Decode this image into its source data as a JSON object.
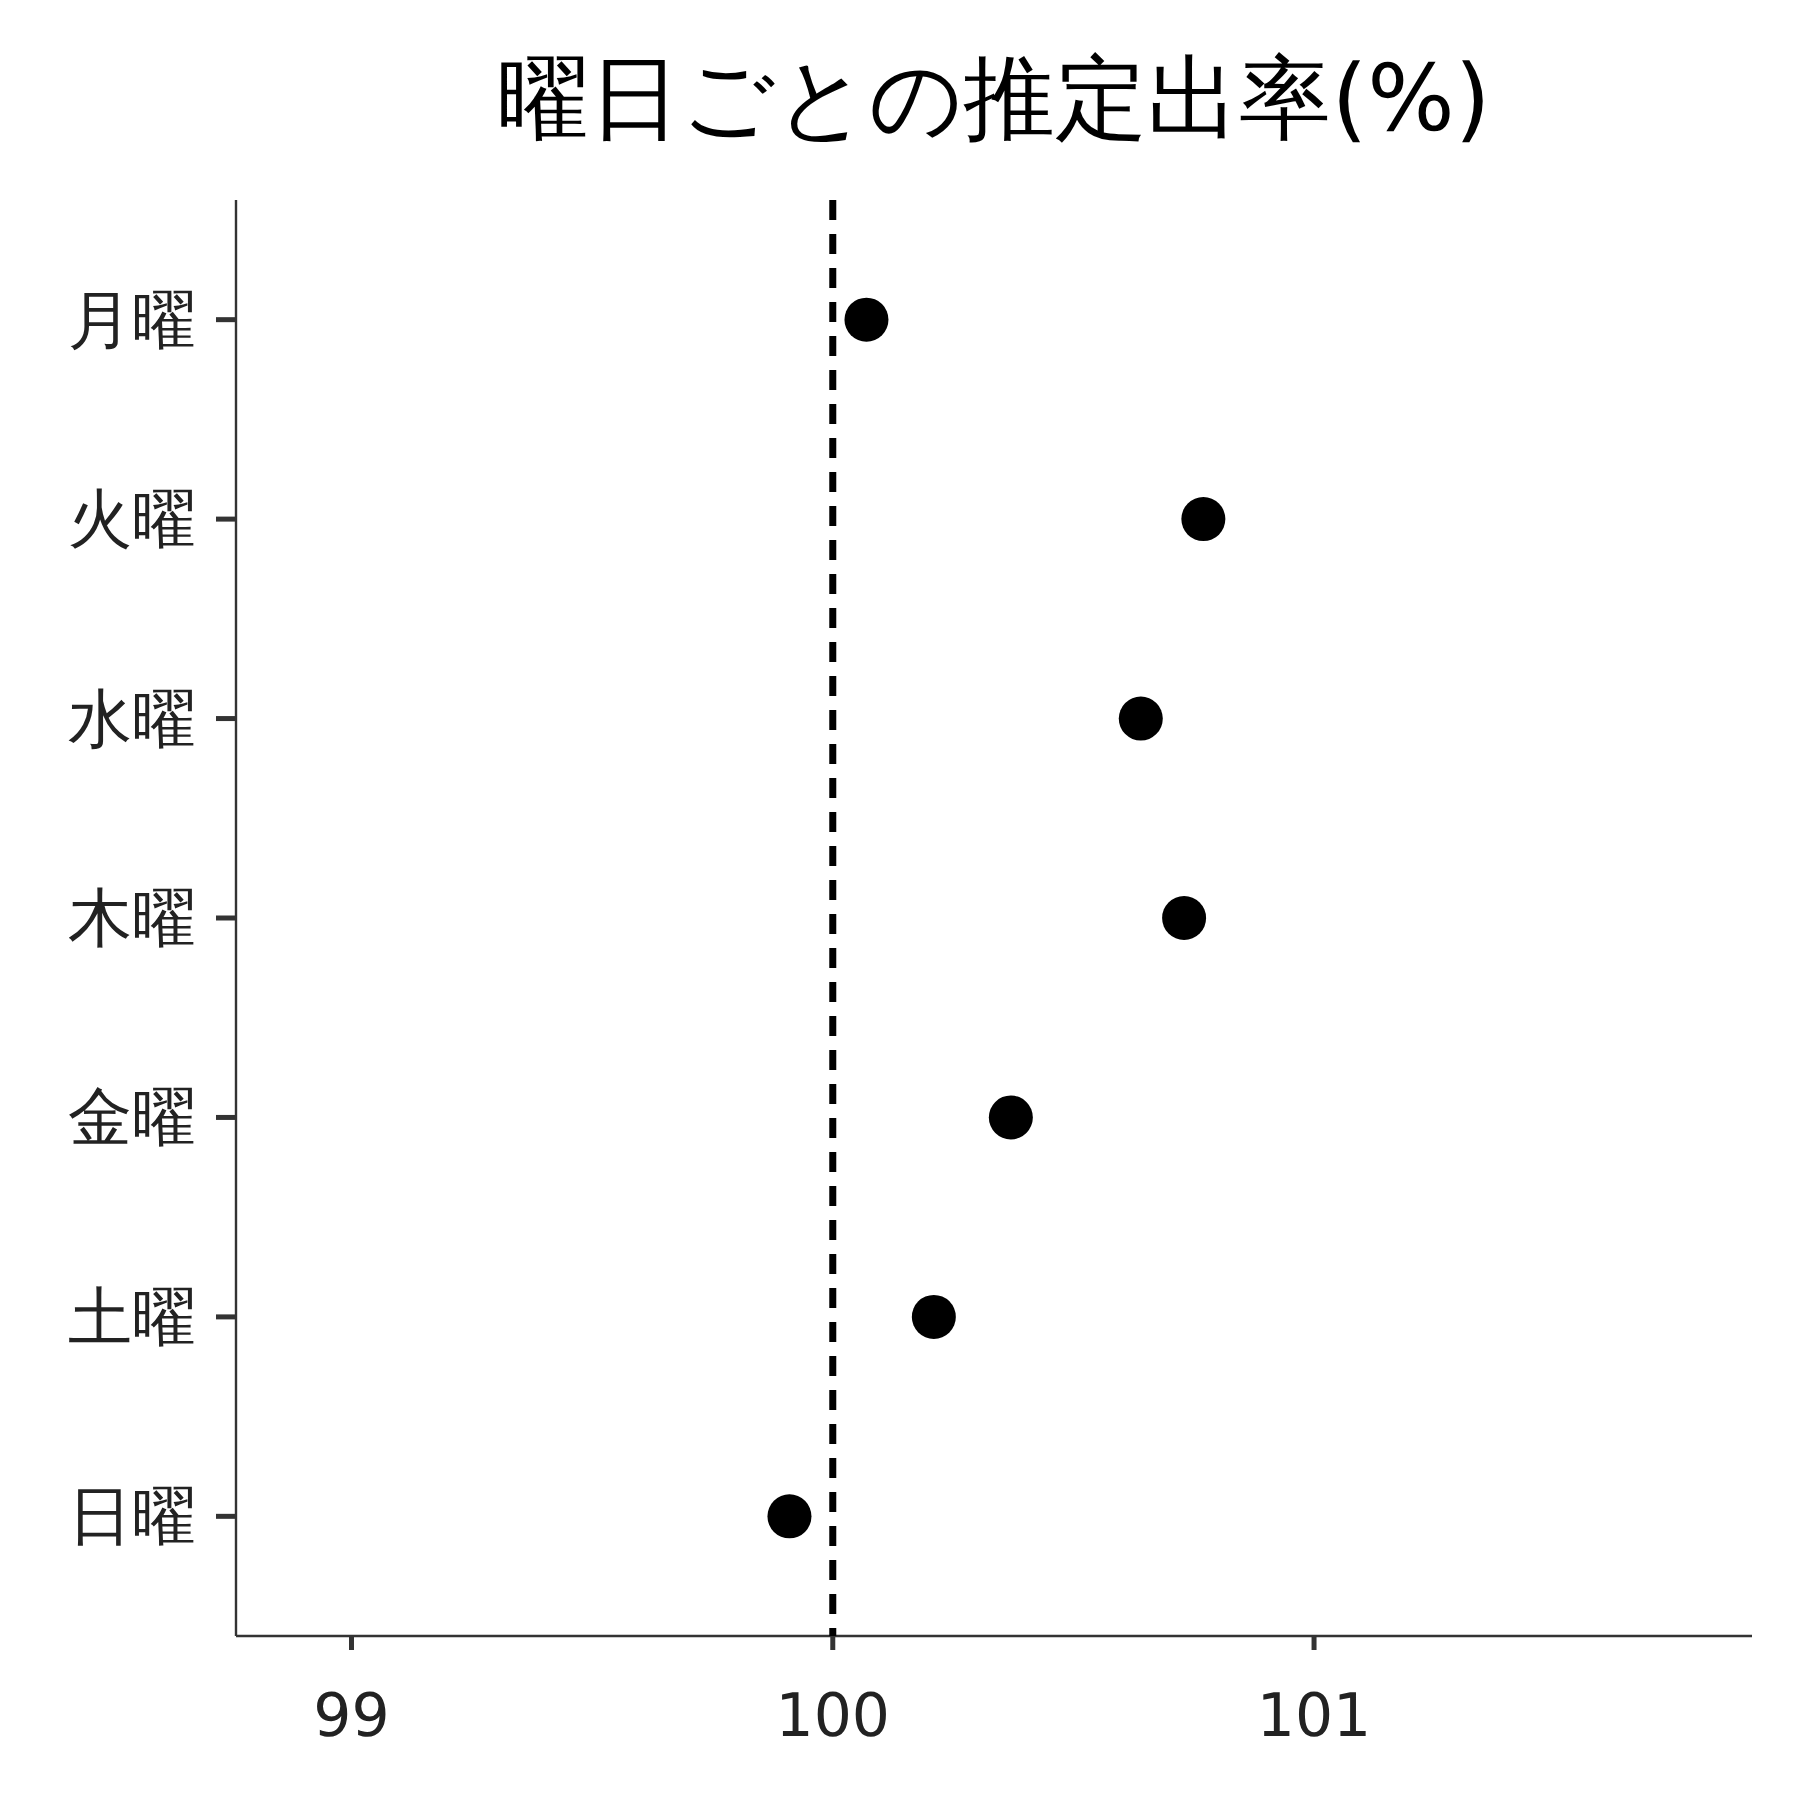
{
  "chart_data": {
    "type": "scatter",
    "title": "曜日ごとの推定出率(%)",
    "orientation": "horizontal",
    "categories": [
      "月曜",
      "火曜",
      "水曜",
      "木曜",
      "金曜",
      "土曜",
      "日曜"
    ],
    "series": [
      {
        "color": "#000000",
        "values": [
          100.07,
          100.77,
          100.64,
          100.73,
          100.37,
          100.21,
          99.91
        ]
      }
    ],
    "xlim": [
      98.76,
      101.91
    ],
    "xticks": [
      99,
      100,
      101
    ],
    "marker": "circle",
    "grid": false,
    "ref_lines": [
      {
        "axis": "x",
        "value": 100,
        "color": "#000000",
        "line_style": "dashed"
      }
    ]
  }
}
